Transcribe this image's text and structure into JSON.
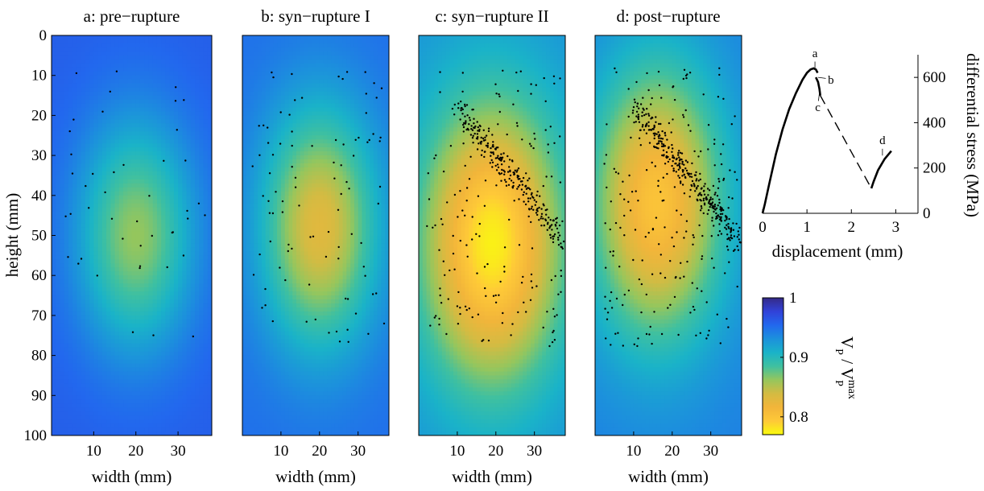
{
  "chart_data": [
    {
      "type": "heatmap",
      "panel": "a",
      "title": "a: pre−rupture",
      "xlabel": "width (mm)",
      "ylabel": "height (mm)",
      "xlim": [
        0,
        38
      ],
      "ylim": [
        0,
        100
      ],
      "y_inverted": true,
      "xticks": [
        10,
        20,
        30
      ],
      "yticks": [
        0,
        10,
        20,
        30,
        40,
        50,
        60,
        70,
        80,
        90,
        100
      ],
      "field": {
        "center": [
          20,
          50
        ],
        "spread": [
          13,
          27
        ],
        "min_ratio": 0.862,
        "edge_ratio": 0.96
      },
      "event_count": 45
    },
    {
      "type": "heatmap",
      "panel": "b",
      "title": "b: syn−rupture I",
      "xlabel": "width (mm)",
      "ylabel": "",
      "xlim": [
        0,
        38
      ],
      "ylim": [
        0,
        100
      ],
      "y_inverted": true,
      "xticks": [
        10,
        20,
        30
      ],
      "field": {
        "center": [
          20,
          48
        ],
        "spread": [
          14,
          28
        ],
        "min_ratio": 0.83,
        "edge_ratio": 0.95
      },
      "event_count": 95
    },
    {
      "type": "heatmap",
      "panel": "c",
      "title": "c: syn−rupture II",
      "xlabel": "width (mm)",
      "ylabel": "",
      "xlim": [
        0,
        38
      ],
      "ylim": [
        0,
        100
      ],
      "y_inverted": true,
      "xticks": [
        10,
        20,
        30
      ],
      "field": {
        "center": [
          19,
          52
        ],
        "spread": [
          17,
          33
        ],
        "min_ratio": 0.775,
        "edge_ratio": 0.93
      },
      "event_count": 420
    },
    {
      "type": "heatmap",
      "panel": "d",
      "title": "d: post−rupture",
      "xlabel": "width (mm)",
      "ylabel": "",
      "xlim": [
        0,
        38
      ],
      "ylim": [
        0,
        100
      ],
      "y_inverted": true,
      "xticks": [
        10,
        20,
        30
      ],
      "field": {
        "center": [
          16,
          42
        ],
        "spread": [
          16,
          32
        ],
        "min_ratio": 0.8,
        "edge_ratio": 0.94
      },
      "event_count": 520
    },
    {
      "type": "line",
      "panel": "stress",
      "xlabel": "displacement (mm)",
      "ylabel": "differential stress (MPa)",
      "xlim": [
        0,
        3.5
      ],
      "ylim": [
        0,
        700
      ],
      "xticks": [
        0,
        1,
        2,
        3
      ],
      "yticks": [
        0,
        200,
        400,
        600
      ],
      "series": [
        {
          "style": "solid",
          "x": [
            0,
            0.05,
            0.15,
            0.3,
            0.45,
            0.6,
            0.75,
            0.9,
            1.0,
            1.08,
            1.15,
            1.2,
            1.24
          ],
          "y": [
            0,
            40,
            130,
            260,
            370,
            460,
            530,
            590,
            620,
            635,
            640,
            635,
            620
          ]
        },
        {
          "style": "solid",
          "x": [
            1.2,
            1.25,
            1.28,
            1.3
          ],
          "y": [
            600,
            580,
            550,
            520
          ]
        },
        {
          "style": "dashed",
          "x": [
            1.3,
            2.45
          ],
          "y": [
            520,
            110
          ]
        },
        {
          "style": "solid",
          "x": [
            2.45,
            2.5,
            2.6,
            2.75,
            2.9
          ],
          "y": [
            110,
            140,
            190,
            240,
            275
          ]
        }
      ],
      "annotations": [
        {
          "text": "a",
          "x": 1.18,
          "y": 640
        },
        {
          "text": "b",
          "x": 1.25,
          "y": 600
        },
        {
          "text": "c",
          "x": 1.28,
          "y": 530
        },
        {
          "text": "d",
          "x": 2.7,
          "y": 255
        }
      ]
    },
    {
      "type": "colorbar",
      "label_main": "V",
      "label_sub": "P",
      "label_sep": " / V",
      "label_sub2": "P",
      "label_sup": "max",
      "range": [
        0.77,
        1.0
      ],
      "ticks": [
        0.8,
        0.9,
        1
      ],
      "colormap": [
        "#f9fb0e",
        "#fec938",
        "#f2b53a",
        "#d4bb42",
        "#95c65d",
        "#3fc0a0",
        "#1ab3c8",
        "#1c91dc",
        "#2268ee",
        "#3142d8",
        "#352a87"
      ]
    }
  ]
}
